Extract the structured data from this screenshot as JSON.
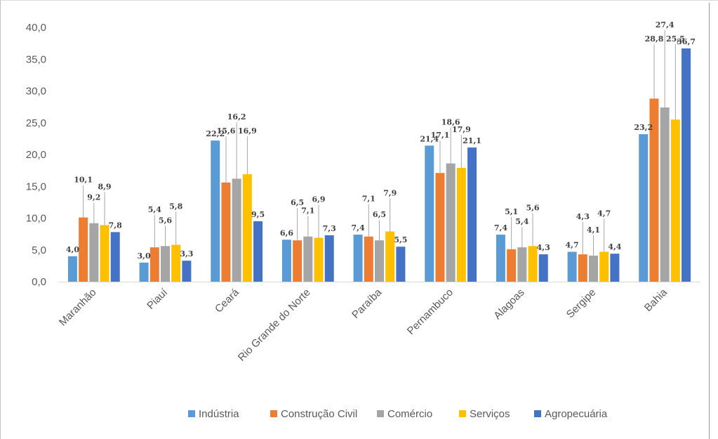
{
  "chart_data": {
    "type": "bar",
    "title": "",
    "xlabel": "",
    "ylabel": "",
    "ylim": [
      0,
      40
    ],
    "y_ticks": [
      "0,0",
      "5,0",
      "10,0",
      "15,0",
      "20,0",
      "25,0",
      "30,0",
      "35,0",
      "40,0"
    ],
    "grid": false,
    "legend_position": "bottom",
    "categories": [
      "Maranhão",
      "Piauí",
      "Ceará",
      "Rio Grande do Norte",
      "Paraíba",
      "Pernambuco",
      "Alagoas",
      "Sergipe",
      "Bahia"
    ],
    "series": [
      {
        "name": "Indústria",
        "color": "#5b9bd5",
        "values": [
          4.0,
          3.0,
          22.2,
          6.6,
          7.4,
          21.4,
          7.4,
          4.7,
          23.2
        ],
        "labels": [
          "4,0",
          "3,0",
          "22,2",
          "6,6",
          "7,4",
          "21,4",
          "7,4",
          "4,7",
          "23,2"
        ]
      },
      {
        "name": "Construção Civil",
        "color": "#ed7d31",
        "values": [
          10.1,
          5.4,
          15.6,
          6.5,
          7.1,
          17.1,
          5.1,
          4.3,
          28.8
        ],
        "labels": [
          "10,1",
          "5,4",
          "15,6",
          "6,5",
          "7,1",
          "17,1",
          "5,1",
          "4,3",
          "28,8"
        ]
      },
      {
        "name": "Comércio",
        "color": "#a5a5a5",
        "values": [
          9.2,
          5.6,
          16.2,
          7.1,
          6.5,
          18.6,
          5.4,
          4.1,
          27.4
        ],
        "labels": [
          "9,2",
          "5,6",
          "16,2",
          "7,1",
          "6,5",
          "18,6",
          "5,4",
          "4,1",
          "27,4"
        ]
      },
      {
        "name": "Serviços",
        "color": "#ffc000",
        "values": [
          8.9,
          5.8,
          16.9,
          6.9,
          7.9,
          17.9,
          5.6,
          4.7,
          25.5
        ],
        "labels": [
          "8,9",
          "5,8",
          "16,9",
          "6,9",
          "7,9",
          "17,9",
          "5,6",
          "4,7",
          "25,5"
        ]
      },
      {
        "name": "Agropecuária",
        "color": "#4472c4",
        "values": [
          7.8,
          3.3,
          9.5,
          7.3,
          5.5,
          21.1,
          4.3,
          4.4,
          36.7
        ],
        "labels": [
          "7,8",
          "3,3",
          "9,5",
          "7,3",
          "5,5",
          "21,1",
          "4,3",
          "4,4",
          "36,7"
        ]
      }
    ]
  }
}
